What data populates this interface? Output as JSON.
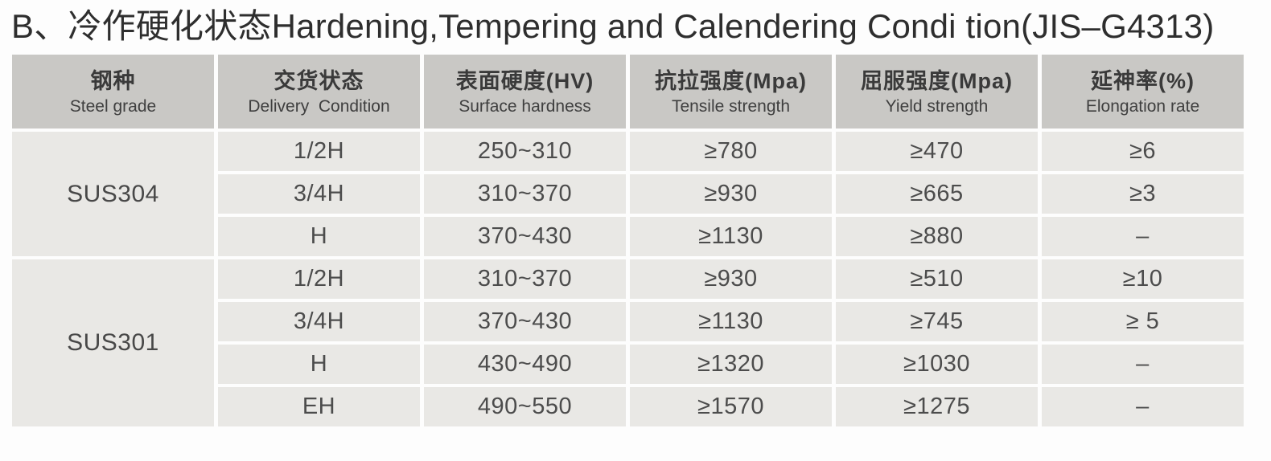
{
  "title": "B、冷作硬化状态Hardening,Tempering and Calendering Condi tion(JIS–G4313)",
  "table": {
    "columns": [
      {
        "zh": "钢种",
        "en": "Steel grade"
      },
      {
        "zh": "交货状态",
        "en": "Delivery  Condition"
      },
      {
        "zh": "表面硬度(HV)",
        "en": "Surface hardness"
      },
      {
        "zh": "抗拉强度(Mpa)",
        "en": "Tensile strength"
      },
      {
        "zh": "屈服强度(Mpa)",
        "en": "Yield strength"
      },
      {
        "zh": "延神率(%)",
        "en": "Elongation rate"
      }
    ],
    "groups": [
      {
        "grade": "SUS304",
        "rows": [
          {
            "delivery": "1/2H",
            "hardness": "250~310",
            "tensile": "≥780",
            "yield": "≥470",
            "elongation": "≥6"
          },
          {
            "delivery": "3/4H",
            "hardness": "310~370",
            "tensile": "≥930",
            "yield": "≥665",
            "elongation": "≥3"
          },
          {
            "delivery": "H",
            "hardness": "370~430",
            "tensile": "≥1130",
            "yield": "≥880",
            "elongation": "–"
          }
        ]
      },
      {
        "grade": "SUS301",
        "rows": [
          {
            "delivery": "1/2H",
            "hardness": "310~370",
            "tensile": "≥930",
            "yield": "≥510",
            "elongation": "≥10"
          },
          {
            "delivery": "3/4H",
            "hardness": "370~430",
            "tensile": "≥1130",
            "yield": "≥745",
            "elongation": "≥ 5"
          },
          {
            "delivery": "H",
            "hardness": "430~490",
            "tensile": "≥1320",
            "yield": "≥1030",
            "elongation": "–"
          },
          {
            "delivery": "EH",
            "hardness": "490~550",
            "tensile": "≥1570",
            "yield": "≥1275",
            "elongation": "–"
          }
        ]
      }
    ]
  },
  "colors": {
    "page_bg": "#fdfdfd",
    "header_cell_bg": "#c9c8c5",
    "data_cell_bg": "#e9e8e5",
    "title_text": "#2e2e2e",
    "header_text": "#3a3a3a",
    "cell_text": "#4c4c4c"
  }
}
